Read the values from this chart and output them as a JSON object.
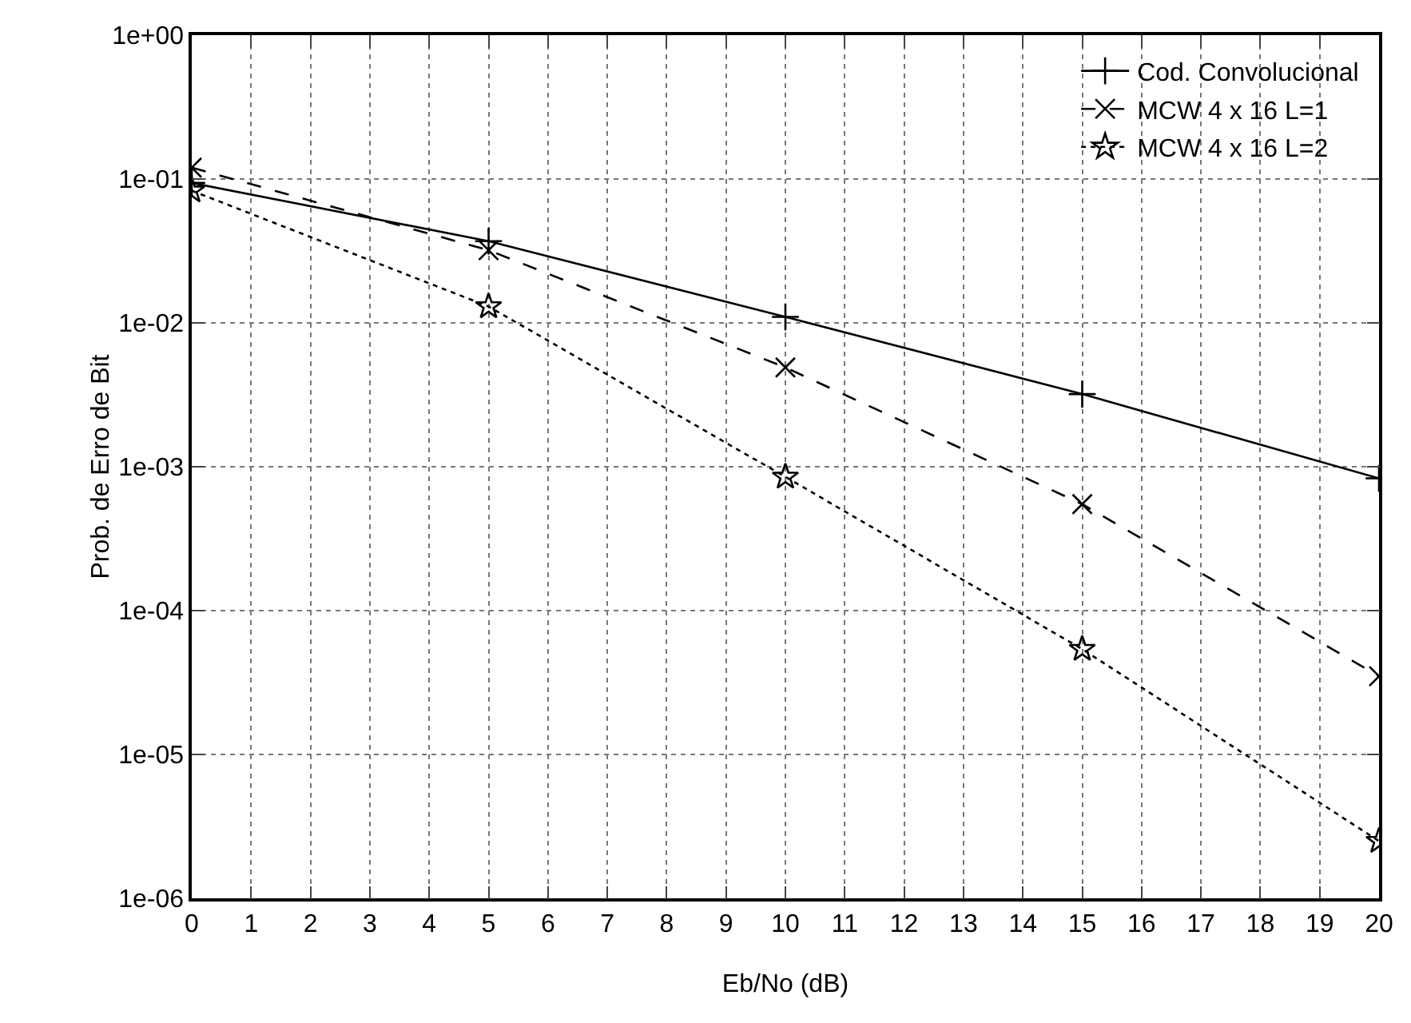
{
  "chart_data": {
    "type": "line",
    "xlabel": "Eb/No (dB)",
    "ylabel": "Prob. de Erro de Bit",
    "x": [
      0,
      5,
      10,
      15,
      20
    ],
    "log": "y",
    "grid": true,
    "legend": "top right",
    "xlim": [
      0,
      20
    ],
    "xticks": [
      0,
      1,
      2,
      3,
      4,
      5,
      6,
      7,
      8,
      9,
      10,
      11,
      12,
      13,
      14,
      15,
      16,
      17,
      18,
      19,
      20
    ],
    "ylim": [
      1e-06,
      1
    ],
    "yticks": [
      {
        "value": 1,
        "label": "1e+00"
      },
      {
        "value": 0.1,
        "label": "1e-01"
      },
      {
        "value": 0.01,
        "label": "1e-02"
      },
      {
        "value": 0.001,
        "label": "1e-03"
      },
      {
        "value": 0.0001,
        "label": "1e-04"
      },
      {
        "value": 1e-05,
        "label": "1e-05"
      },
      {
        "value": 1e-06,
        "label": "1e-06"
      }
    ],
    "series": [
      {
        "name": "Cod. Convolucional",
        "color": "#000000",
        "marker": "cross",
        "line_style": "solid",
        "values": [
          0.094,
          0.037,
          0.011,
          0.0032,
          0.00083
        ]
      },
      {
        "name": "MCW 4 x 16 L=1",
        "color": "#000000",
        "marker": "cross",
        "line_style": "dashed",
        "values": [
          0.12,
          0.032,
          0.0049,
          0.00055,
          3.5e-05
        ]
      },
      {
        "name": "MCW 4 x 16 L=2",
        "color": "#000000",
        "marker": "star",
        "line_style": "dotted",
        "values": [
          0.083,
          0.013,
          0.00085,
          5.4e-05,
          2.5e-06
        ]
      }
    ]
  }
}
